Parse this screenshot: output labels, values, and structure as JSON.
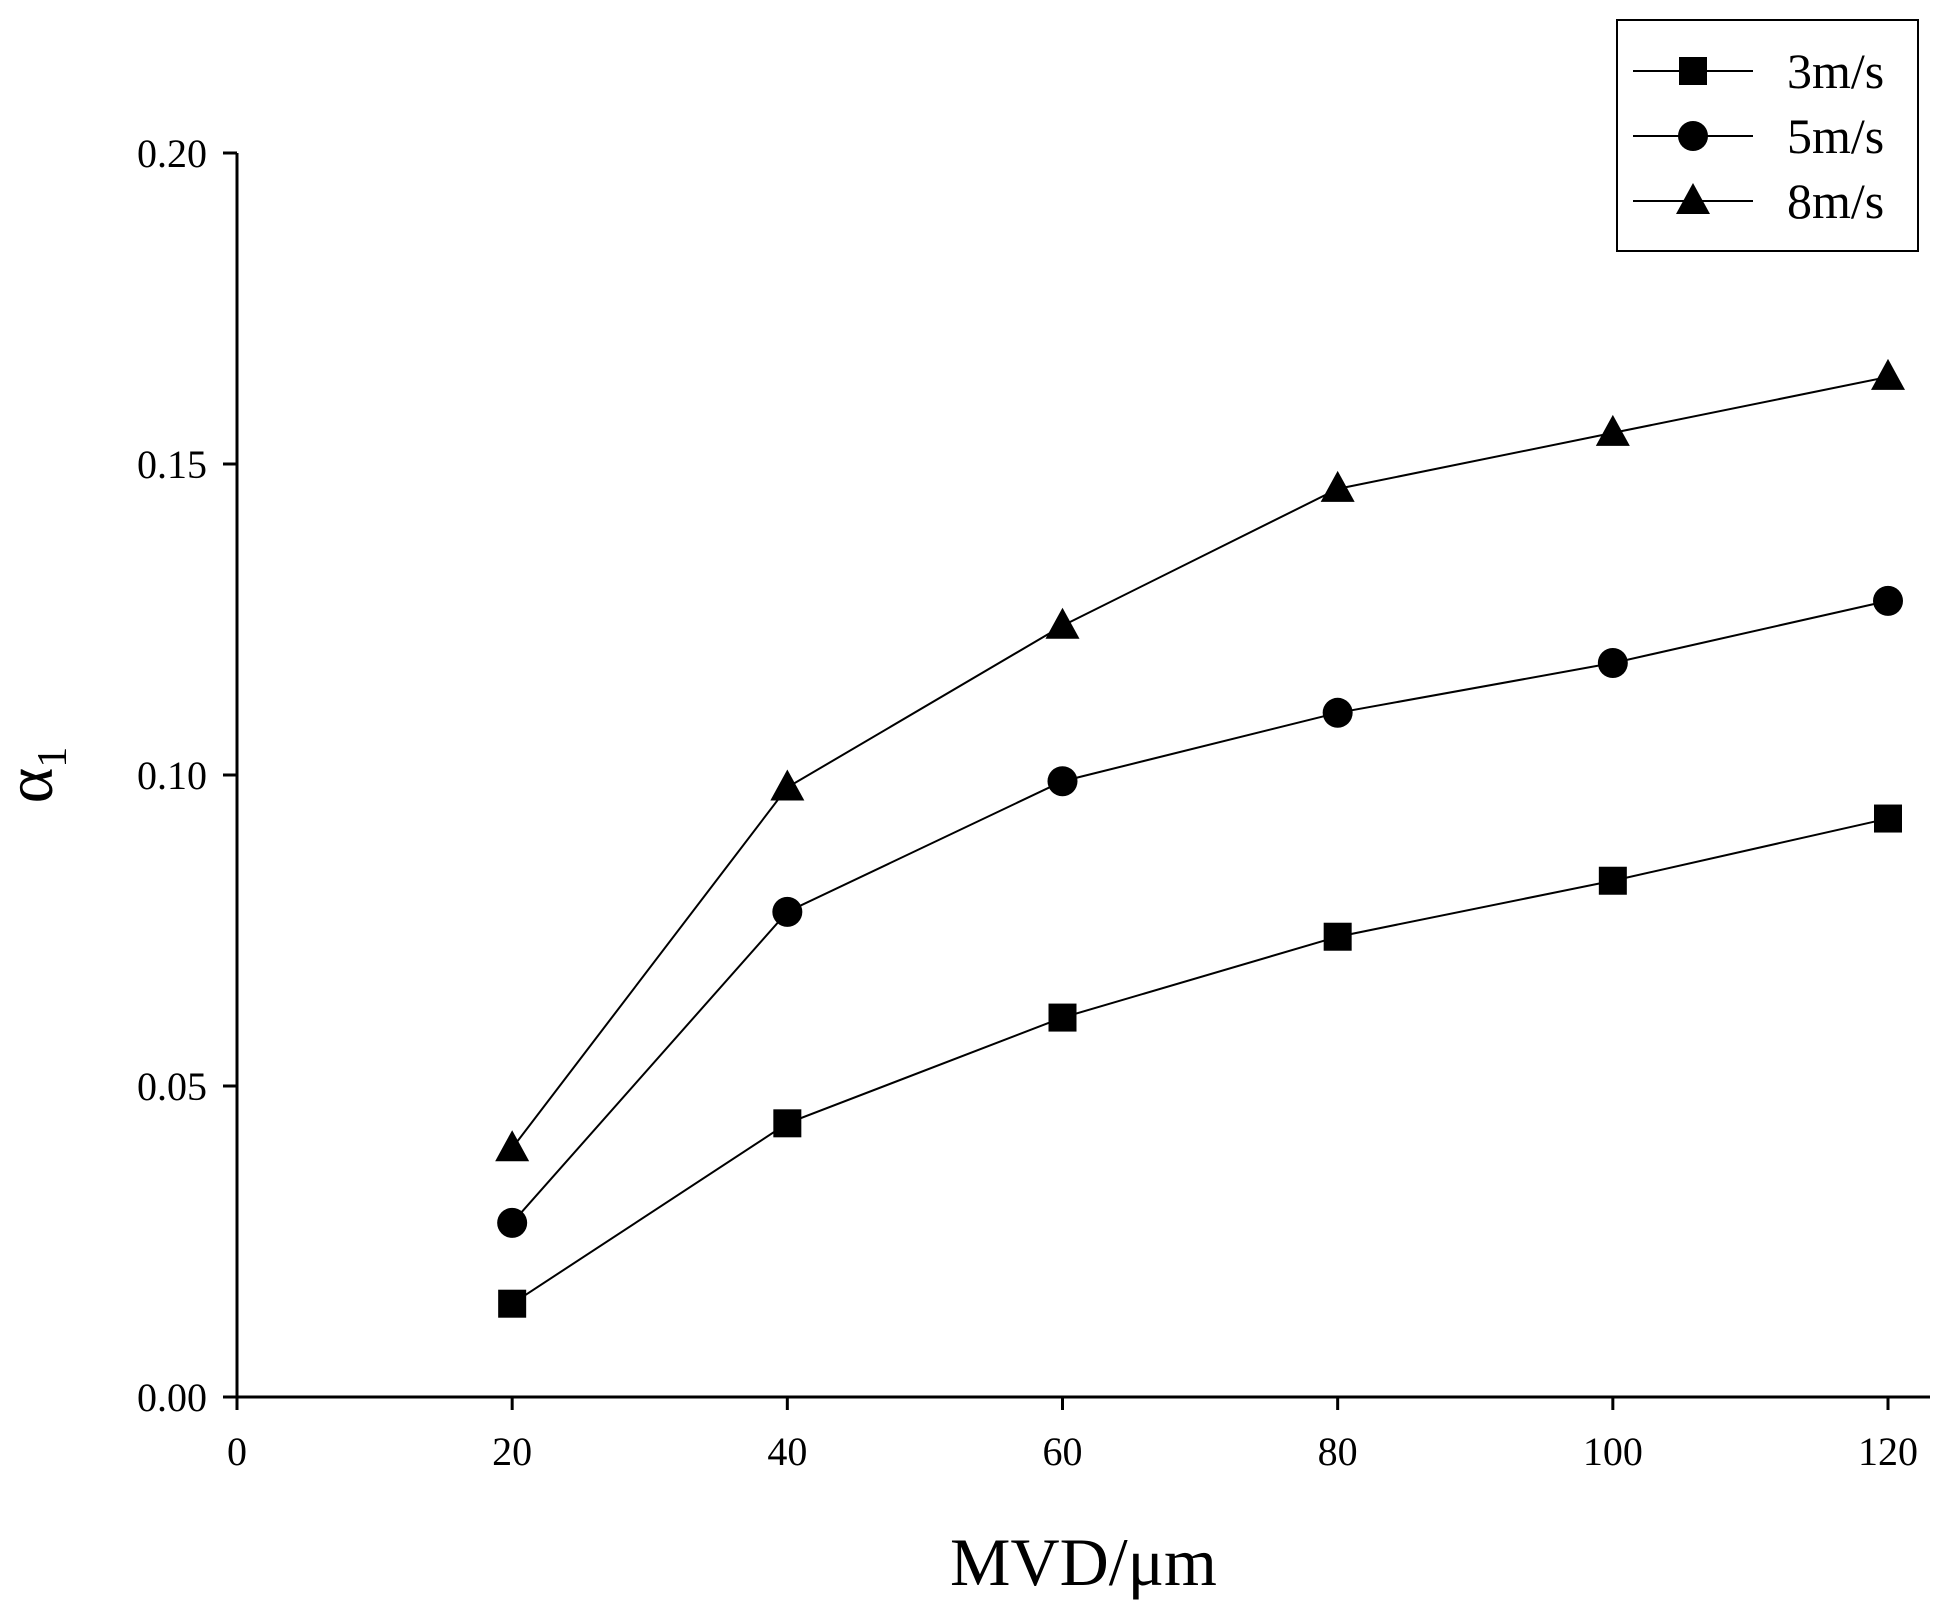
{
  "chart_data": {
    "type": "line",
    "title": "",
    "xlabel": "MVD/μm",
    "ylabel": "α",
    "ylabel_subscript": "1",
    "xlim": [
      0,
      125
    ],
    "ylim": [
      0,
      0.2
    ],
    "xticks": [
      0,
      20,
      40,
      60,
      80,
      100,
      120
    ],
    "xtick_labels": [
      "0",
      "20",
      "40",
      "60",
      "80",
      "100",
      "120"
    ],
    "yticks": [
      0,
      0.05,
      0.1,
      0.15,
      0.2
    ],
    "ytick_labels": [
      "0.00",
      "0.05",
      "0.10",
      "0.15",
      "0.20"
    ],
    "grid": false,
    "legend_position": "top-right",
    "x": [
      20,
      40,
      60,
      80,
      100,
      120
    ],
    "series": [
      {
        "name": "3m/s",
        "marker": "square",
        "values": [
          0.015,
          0.044,
          0.061,
          0.074,
          0.083,
          0.093
        ]
      },
      {
        "name": "5m/s",
        "marker": "circle",
        "values": [
          0.028,
          0.078,
          0.099,
          0.11,
          0.118,
          0.128
        ]
      },
      {
        "name": "8m/s",
        "marker": "triangle",
        "values": [
          0.04,
          0.098,
          0.124,
          0.146,
          0.155,
          0.164
        ]
      }
    ]
  }
}
